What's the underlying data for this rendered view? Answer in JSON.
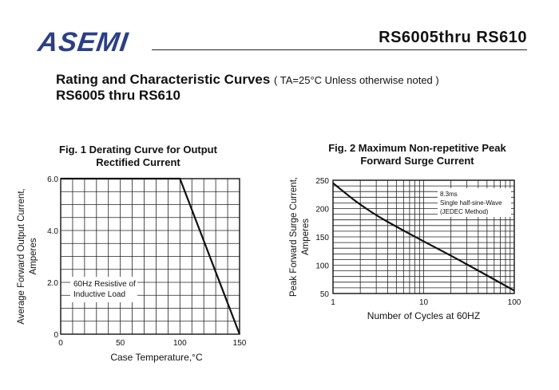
{
  "header": {
    "logo_text": "ASEMI",
    "doc_title": "RS6005thru RS610",
    "heading": "Rating and Characteristic Curves",
    "heading_condition": "( TA=25°C Unless otherwise noted )",
    "subheading": "RS6005 thru RS610"
  },
  "chart_data": [
    {
      "type": "line",
      "title": "Fig. 1 Derating Curve for Output Rectified Current",
      "xlabel": "Case Temperature,°C",
      "ylabel": "Average Forward Output Current, Amperes",
      "x_ticks": [
        "0",
        "50",
        "100",
        "150"
      ],
      "y_ticks": [
        "0",
        "2.0",
        "4.0",
        "6.0"
      ],
      "xlim": [
        0,
        150
      ],
      "ylim": [
        0,
        6
      ],
      "grid": true,
      "series": [
        {
          "x": [
            0,
            100,
            150
          ],
          "y": [
            6.0,
            6.0,
            0
          ]
        }
      ],
      "annotation": [
        "60Hz Resistive of",
        "Inductive Load"
      ]
    },
    {
      "type": "line",
      "title": "Fig. 2 Maximum Non-repetitive Peak Forward Surge Current",
      "xlabel": "Number of Cycles at 60HZ",
      "ylabel": "Peak Forward Surge Current, Amperes",
      "x_scale": "log",
      "x_ticks": [
        "1",
        "10",
        "100"
      ],
      "y_ticks": [
        "50",
        "100",
        "150",
        "200",
        "250"
      ],
      "xlim": [
        1,
        100
      ],
      "ylim": [
        50,
        250
      ],
      "grid": true,
      "series": [
        {
          "x": [
            1,
            1.5,
            2,
            3,
            5,
            10,
            20,
            50,
            100
          ],
          "y": [
            245,
            222,
            207,
            188,
            168,
            142,
            117,
            82,
            55
          ]
        }
      ],
      "annotation": [
        "8.3ms",
        "Single half-sine-Wave",
        "(JEDEC Method)"
      ]
    }
  ]
}
